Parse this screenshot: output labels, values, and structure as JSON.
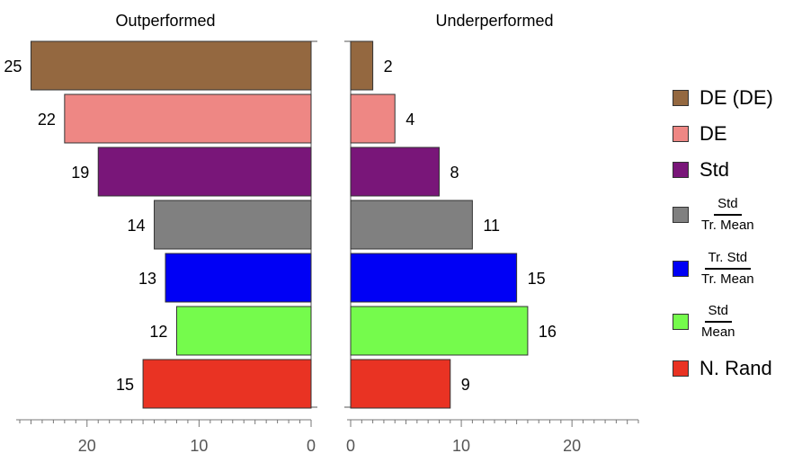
{
  "chart_data": {
    "type": "bar",
    "orientation": "horizontal",
    "categories": [
      "DE (DE)",
      "DE",
      "Std",
      "Std / Tr. Mean",
      "Tr. Std / Tr. Mean",
      "Std / Mean",
      "N. Rand"
    ],
    "colors": [
      "#946840",
      "#ee8784",
      "#791679",
      "#808080",
      "#0000f5",
      "#75fb4c",
      "#e93323"
    ],
    "panels": [
      {
        "title": "Outperformed",
        "values": [
          25,
          22,
          19,
          14,
          13,
          12,
          15
        ],
        "xlim": [
          0,
          26
        ],
        "reversed": true,
        "ticks": [
          0,
          10,
          20
        ],
        "tick_labels": [
          "0",
          "10",
          "20"
        ]
      },
      {
        "title": "Underperformed",
        "values": [
          2,
          4,
          8,
          11,
          15,
          16,
          9
        ],
        "xlim": [
          0,
          26
        ],
        "reversed": false,
        "ticks": [
          0,
          10,
          20
        ],
        "tick_labels": [
          "0",
          "10",
          "20"
        ]
      }
    ],
    "legend": {
      "placement": "right",
      "items": [
        {
          "label": "DE (DE)",
          "color": "#946840"
        },
        {
          "label": "DE",
          "color": "#ee8784"
        },
        {
          "label": "Std",
          "color": "#791679"
        },
        {
          "numerator": "Std",
          "denominator": "Tr. Mean",
          "color": "#808080"
        },
        {
          "numerator": "Tr. Std",
          "denominator": "Tr. Mean",
          "color": "#0000f5"
        },
        {
          "numerator": "Std",
          "denominator": "Mean",
          "color": "#75fb4c"
        },
        {
          "label": "N. Rand",
          "color": "#e93323"
        }
      ]
    }
  }
}
